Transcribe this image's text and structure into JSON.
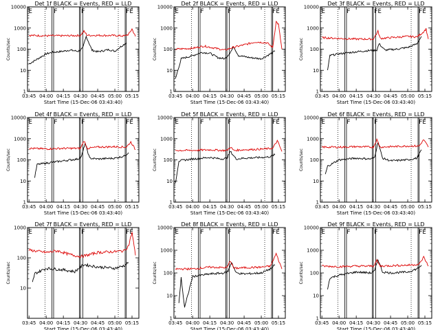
{
  "chart_data": [
    {
      "type": "line",
      "title": "Det 1f BLACK = Events, RED = LLD",
      "xlabel": "Start Time (15-Dec-06 03:43:40)",
      "ylabel": "Counts/sec",
      "yscale": "log",
      "ylim": [
        1,
        10000
      ],
      "grid": false,
      "x_ticks": [
        "03:45",
        "04:00",
        "04:15",
        "04:30",
        "04:45",
        "05:00",
        "05:15"
      ],
      "y_ticks": [
        "1",
        "10",
        "100",
        "1000",
        "10000"
      ],
      "flag_labels": [
        "E",
        "F",
        "F",
        "FE"
      ],
      "series": [
        {
          "name": "Events",
          "color": "#000000",
          "x": [
            "03:45",
            "04:00",
            "04:05",
            "04:15",
            "04:20",
            "04:28",
            "04:32",
            "04:35",
            "04:40",
            "04:45",
            "04:55",
            "05:00",
            "05:05",
            "05:10"
          ],
          "values": [
            20,
            60,
            70,
            80,
            90,
            80,
            110,
            400,
            90,
            75,
            95,
            80,
            130,
            200
          ]
        },
        {
          "name": "LLD",
          "color": "#dd0000",
          "x": [
            "03:45",
            "04:00",
            "04:15",
            "04:25",
            "04:30",
            "04:33",
            "04:36",
            "04:45",
            "05:00",
            "05:08",
            "05:12",
            "05:15",
            "05:18"
          ],
          "values": [
            450,
            430,
            430,
            440,
            450,
            700,
            450,
            450,
            440,
            420,
            500,
            900,
            400
          ]
        }
      ]
    },
    {
      "type": "line",
      "title": "Det 2f BLACK = Events, RED = LLD",
      "xlabel": "Start Time (15-Dec-06 03:43:40)",
      "ylabel": "Counts/sec",
      "yscale": "log",
      "ylim": [
        1,
        10000
      ],
      "grid": false,
      "x_ticks": [
        "03:45",
        "04:00",
        "04:15",
        "04:30",
        "04:45",
        "05:00",
        "05:15"
      ],
      "y_ticks": [
        "1",
        "10",
        "100",
        "1000",
        "10000"
      ],
      "flag_labels": [
        "E",
        "F",
        "F",
        "FE"
      ],
      "series": [
        {
          "name": "Events",
          "color": "#000000",
          "x": [
            "03:45",
            "03:50",
            "04:00",
            "04:08",
            "04:15",
            "04:22",
            "04:28",
            "04:32",
            "04:36",
            "04:40",
            "04:50",
            "05:00",
            "05:08",
            "05:12"
          ],
          "values": [
            4,
            35,
            50,
            70,
            65,
            40,
            35,
            60,
            130,
            50,
            40,
            35,
            60,
            80
          ]
        },
        {
          "name": "LLD",
          "color": "#dd0000",
          "x": [
            "03:45",
            "04:00",
            "04:10",
            "04:20",
            "04:28",
            "04:35",
            "04:45",
            "04:55",
            "05:05",
            "05:10",
            "05:13",
            "05:15",
            "05:18"
          ],
          "values": [
            100,
            110,
            140,
            110,
            90,
            120,
            160,
            220,
            200,
            120,
            2000,
            1500,
            100
          ]
        }
      ]
    },
    {
      "type": "line",
      "title": "Det 3f BLACK = Events, RED = LLD",
      "xlabel": "Start Time (15-Dec-06 03:43:40)",
      "ylabel": "Counts/sec",
      "yscale": "log",
      "ylim": [
        1,
        10000
      ],
      "grid": false,
      "x_ticks": [
        "03:45",
        "04:00",
        "04:15",
        "04:30",
        "04:45",
        "05:00",
        "05:15"
      ],
      "y_ticks": [
        "1",
        "10",
        "100",
        "1000",
        "10000"
      ],
      "flag_labels": [
        "E",
        "F",
        "FE",
        "FE"
      ],
      "series": [
        {
          "name": "Events",
          "color": "#000000",
          "x": [
            "03:50",
            "03:52",
            "04:00",
            "04:15",
            "04:25",
            "04:33",
            "04:35",
            "04:40",
            "04:50",
            "05:00",
            "05:08",
            "05:12"
          ],
          "values": [
            10,
            50,
            60,
            75,
            85,
            90,
            180,
            90,
            100,
            120,
            180,
            400
          ]
        },
        {
          "name": "LLD",
          "color": "#dd0000",
          "x": [
            "03:45",
            "04:00",
            "04:15",
            "04:30",
            "04:34",
            "04:36",
            "04:45",
            "05:00",
            "05:08",
            "05:13",
            "05:16",
            "05:18"
          ],
          "values": [
            350,
            320,
            300,
            300,
            700,
            320,
            350,
            400,
            380,
            600,
            900,
            300
          ]
        }
      ]
    },
    {
      "type": "line",
      "title": "Det 4f BLACK = Events, RED = LLD",
      "xlabel": "Start Time (15-Dec-06 03:43:40)",
      "ylabel": "Counts/sec",
      "yscale": "log",
      "ylim": [
        1,
        10000
      ],
      "grid": false,
      "x_ticks": [
        "03:45",
        "04:00",
        "04:15",
        "04:30",
        "04:45",
        "05:00",
        "05:15"
      ],
      "y_ticks": [
        "1",
        "10",
        "100",
        "1000",
        "10000"
      ],
      "flag_labels": [
        "E",
        "F",
        "F",
        "FE"
      ],
      "series": [
        {
          "name": "Events",
          "color": "#000000",
          "x": [
            "03:50",
            "03:52",
            "04:00",
            "04:15",
            "04:28",
            "04:31",
            "04:34",
            "04:38",
            "04:45",
            "05:00",
            "05:08",
            "05:12"
          ],
          "values": [
            15,
            60,
            70,
            90,
            110,
            150,
            600,
            120,
            110,
            120,
            150,
            220
          ]
        },
        {
          "name": "LLD",
          "color": "#dd0000",
          "x": [
            "03:45",
            "04:00",
            "04:15",
            "04:30",
            "04:33",
            "04:36",
            "04:45",
            "05:00",
            "05:10",
            "05:14",
            "05:18"
          ],
          "values": [
            350,
            330,
            350,
            350,
            800,
            350,
            400,
            420,
            400,
            700,
            300
          ]
        }
      ]
    },
    {
      "type": "line",
      "title": "Det 5f BLACK = Events, RED = LLD",
      "xlabel": "Start Time (15-Dec-06 03:43:40)",
      "ylabel": "Counts/sec",
      "yscale": "log",
      "ylim": [
        1,
        10000
      ],
      "grid": false,
      "x_ticks": [
        "03:45",
        "04:00",
        "04:15",
        "04:30",
        "04:45",
        "05:00",
        "05:15"
      ],
      "y_ticks": [
        "1",
        "10",
        "100",
        "1000",
        "10000"
      ],
      "flag_labels": [
        "E",
        "F",
        "F",
        "FE"
      ],
      "series": [
        {
          "name": "Events",
          "color": "#000000",
          "x": [
            "03:45",
            "03:48",
            "04:00",
            "04:15",
            "04:25",
            "04:30",
            "04:33",
            "04:38",
            "04:45",
            "05:00",
            "05:08",
            "05:12"
          ],
          "values": [
            8,
            90,
            110,
            130,
            110,
            120,
            250,
            110,
            120,
            130,
            140,
            180
          ]
        },
        {
          "name": "LLD",
          "color": "#dd0000",
          "x": [
            "03:45",
            "04:00",
            "04:15",
            "04:25",
            "04:30",
            "04:33",
            "04:36",
            "04:45",
            "05:00",
            "05:10",
            "05:14",
            "05:18"
          ],
          "values": [
            280,
            280,
            300,
            280,
            280,
            400,
            280,
            300,
            320,
            350,
            800,
            250
          ]
        }
      ]
    },
    {
      "type": "line",
      "title": "Det 6f BLACK = Events, RED = LLD",
      "xlabel": "Start Time (15-Dec-06 03:43:40)",
      "ylabel": "Counts/sec",
      "yscale": "log",
      "ylim": [
        1,
        10000
      ],
      "grid": false,
      "x_ticks": [
        "03:45",
        "04:00",
        "04:15",
        "04:30",
        "04:45",
        "05:00",
        "05:15"
      ],
      "y_ticks": [
        "1",
        "10",
        "100",
        "1000",
        "10000"
      ],
      "flag_labels": [
        "E",
        "F",
        "F",
        "FE"
      ],
      "series": [
        {
          "name": "Events",
          "color": "#000000",
          "x": [
            "03:48",
            "03:50",
            "04:00",
            "04:15",
            "04:28",
            "04:31",
            "04:34",
            "04:38",
            "04:45",
            "05:00",
            "05:08",
            "05:12"
          ],
          "values": [
            20,
            50,
            100,
            120,
            110,
            130,
            700,
            120,
            90,
            100,
            120,
            300
          ]
        },
        {
          "name": "LLD",
          "color": "#dd0000",
          "x": [
            "03:45",
            "04:00",
            "04:15",
            "04:30",
            "04:33",
            "04:36",
            "04:45",
            "05:00",
            "05:10",
            "05:14",
            "05:18"
          ],
          "values": [
            400,
            400,
            420,
            400,
            900,
            400,
            420,
            450,
            450,
            900,
            400
          ]
        }
      ]
    },
    {
      "type": "line",
      "title": "Det 7f BLACK = Events, RED = LLD",
      "xlabel": "Start Time (15-Dec-06 03:43:40)",
      "ylabel": "Counts/sec",
      "yscale": "log",
      "ylim": [
        1,
        1000
      ],
      "grid": false,
      "x_ticks": [
        "03:45",
        "04:00",
        "04:15",
        "04:30",
        "04:45",
        "05:00",
        "05:15"
      ],
      "y_ticks": [
        "10",
        "100",
        "1000"
      ],
      "flag_labels": [
        "E",
        "F",
        "F",
        "FE"
      ],
      "series": [
        {
          "name": "Events",
          "color": "#000000",
          "x": [
            "03:48",
            "03:50",
            "04:00",
            "04:15",
            "04:25",
            "04:30",
            "04:33",
            "04:38",
            "04:45",
            "05:00",
            "05:08",
            "05:12"
          ],
          "values": [
            15,
            30,
            45,
            40,
            35,
            50,
            60,
            55,
            50,
            45,
            55,
            70
          ]
        },
        {
          "name": "LLD",
          "color": "#dd0000",
          "x": [
            "03:45",
            "04:00",
            "04:10",
            "04:20",
            "04:30",
            "04:35",
            "04:45",
            "05:00",
            "05:08",
            "05:12",
            "05:15",
            "05:18"
          ],
          "values": [
            180,
            150,
            170,
            130,
            110,
            120,
            150,
            160,
            170,
            250,
            700,
            120
          ]
        }
      ]
    },
    {
      "type": "line",
      "title": "Det 8f BLACK = Events, RED = LLD",
      "xlabel": "Start Time (15-Dec-06 03:43:40)",
      "ylabel": "Counts/sec",
      "yscale": "log",
      "ylim": [
        1,
        10000
      ],
      "grid": false,
      "x_ticks": [
        "03:45",
        "04:00",
        "04:15",
        "04:30",
        "04:45",
        "05:00",
        "05:15"
      ],
      "y_ticks": [
        "1",
        "10",
        "100",
        "1000",
        "10000"
      ],
      "flag_labels": [
        "E",
        "F",
        "F",
        "FE"
      ],
      "series": [
        {
          "name": "Events",
          "color": "#000000",
          "x": [
            "03:48",
            "03:50",
            "03:53",
            "04:00",
            "04:15",
            "04:28",
            "04:31",
            "04:34",
            "04:38",
            "04:45",
            "05:00",
            "05:08",
            "05:12"
          ],
          "values": [
            5,
            60,
            3,
            70,
            90,
            100,
            120,
            300,
            100,
            90,
            100,
            150,
            220
          ]
        },
        {
          "name": "LLD",
          "color": "#dd0000",
          "x": [
            "03:45",
            "04:00",
            "04:15",
            "04:30",
            "04:33",
            "04:36",
            "04:45",
            "05:00",
            "05:08",
            "05:13",
            "05:18"
          ],
          "values": [
            150,
            150,
            180,
            170,
            350,
            160,
            170,
            180,
            200,
            700,
            150
          ]
        }
      ]
    },
    {
      "type": "line",
      "title": "Det 9f BLACK = Events, RED = LLD",
      "xlabel": "Start Time (15-Dec-06 03:43:40)",
      "ylabel": "Counts/sec",
      "yscale": "log",
      "ylim": [
        1,
        10000
      ],
      "grid": false,
      "x_ticks": [
        "03:45",
        "04:00",
        "04:15",
        "04:30",
        "04:45",
        "05:00",
        "05:15"
      ],
      "y_ticks": [
        "1",
        "10",
        "100",
        "1000",
        "10000"
      ],
      "flag_labels": [
        "E",
        "F",
        "F",
        "FE"
      ],
      "series": [
        {
          "name": "Events",
          "color": "#000000",
          "x": [
            "03:50",
            "03:52",
            "04:00",
            "04:15",
            "04:28",
            "04:31",
            "04:34",
            "04:38",
            "04:45",
            "05:00",
            "05:08",
            "05:12"
          ],
          "values": [
            20,
            60,
            80,
            110,
            100,
            120,
            400,
            110,
            100,
            110,
            150,
            220
          ]
        },
        {
          "name": "LLD",
          "color": "#dd0000",
          "x": [
            "03:45",
            "04:00",
            "04:15",
            "04:30",
            "04:33",
            "04:36",
            "04:45",
            "05:00",
            "05:10",
            "05:14",
            "05:18"
          ],
          "values": [
            200,
            190,
            200,
            200,
            350,
            200,
            210,
            220,
            240,
            500,
            200
          ]
        }
      ]
    }
  ]
}
